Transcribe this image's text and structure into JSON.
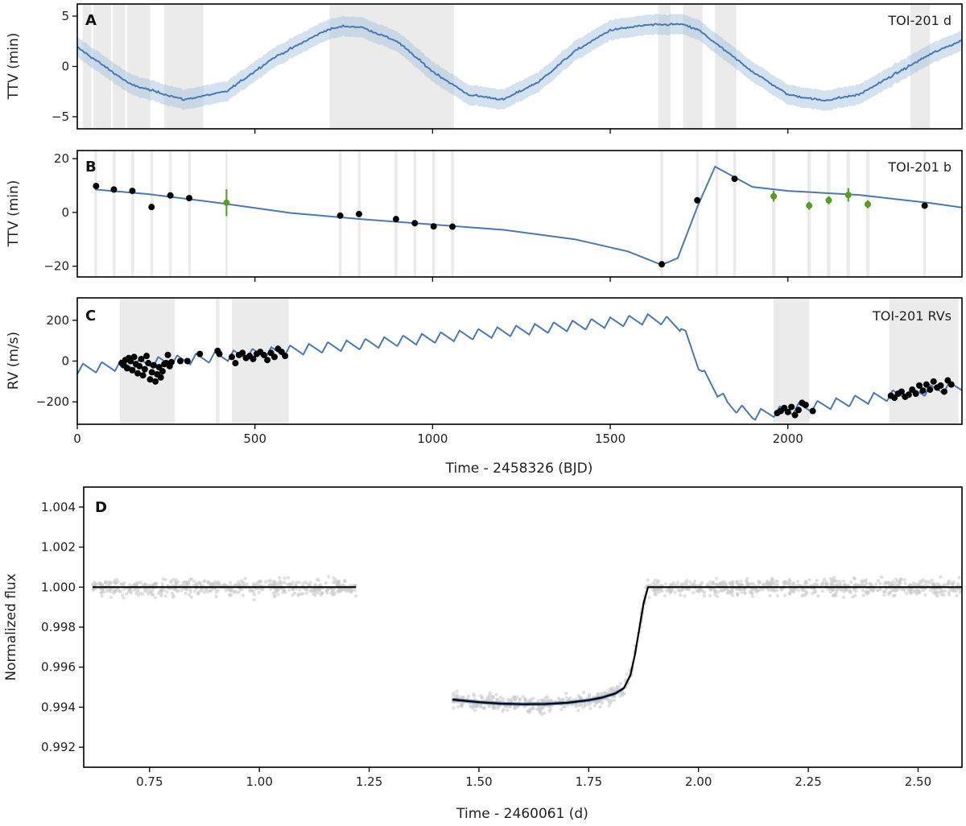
{
  "chart_data": [
    {
      "type": "line",
      "panel": "A",
      "label": "TOI-201 d",
      "ylabel": "TTV (min)",
      "xlim": [
        0,
        2490
      ],
      "ylim": [
        -6.2,
        6.2
      ],
      "yticks": [
        5,
        0,
        -5
      ],
      "xticks": [
        500,
        1000,
        1500,
        2000
      ],
      "model": {
        "x": [
          0,
          150,
          300,
          420,
          550,
          700,
          750,
          800,
          900,
          1000,
          1100,
          1200,
          1300,
          1400,
          1500,
          1600,
          1700,
          1750,
          1800,
          1900,
          2000,
          2100,
          2200,
          2300,
          2400,
          2490
        ],
        "y": [
          1.9,
          -1.8,
          -3.3,
          -2.5,
          0.8,
          3.6,
          4.0,
          3.9,
          2.5,
          -0.5,
          -2.8,
          -3.3,
          -1.5,
          1.5,
          3.6,
          4.1,
          4.2,
          3.6,
          2.2,
          -0.5,
          -2.8,
          -3.4,
          -2.8,
          -0.8,
          1.2,
          2.6
        ]
      },
      "band_halfwidth": 1.0,
      "gray_spans": [
        [
          15,
          40
        ],
        [
          45,
          95
        ],
        [
          100,
          135
        ],
        [
          140,
          205
        ],
        [
          245,
          355
        ],
        [
          710,
          1060
        ],
        [
          1635,
          1670
        ],
        [
          1705,
          1760
        ],
        [
          1795,
          1855
        ],
        [
          2345,
          2400
        ]
      ]
    },
    {
      "type": "scatter",
      "panel": "B",
      "label": "TOI-201 b",
      "ylabel": "TTV (min)",
      "xlim": [
        0,
        2490
      ],
      "ylim": [
        -24,
        23
      ],
      "yticks": [
        20,
        0,
        -20
      ],
      "xticks": [
        500,
        1000,
        1500,
        2000
      ],
      "model": {
        "x": [
          50,
          200,
          400,
          600,
          800,
          1000,
          1200,
          1400,
          1550,
          1645,
          1690,
          1745,
          1795,
          1900,
          2000,
          2200,
          2400,
          2490
        ],
        "y": [
          8.5,
          6.8,
          3.5,
          -0.2,
          -2.5,
          -4.5,
          -6.5,
          -10.0,
          -14.5,
          -19.5,
          -17.0,
          2.0,
          17.0,
          9.5,
          8.0,
          6.5,
          3.5,
          1.8
        ]
      },
      "points_black": [
        [
          53,
          9.8
        ],
        [
          103,
          8.5
        ],
        [
          155,
          8.0
        ],
        [
          209,
          2.0
        ],
        [
          262,
          6.3
        ],
        [
          315,
          5.3
        ],
        [
          740,
          -1.2
        ],
        [
          793,
          -0.6
        ],
        [
          897,
          -2.5
        ],
        [
          950,
          -4.0
        ],
        [
          1003,
          -5.2
        ],
        [
          1056,
          -5.3
        ],
        [
          1645,
          -19.3
        ],
        [
          1745,
          4.5
        ],
        [
          1850,
          12.5
        ],
        [
          2385,
          2.5
        ]
      ],
      "points_green": [
        [
          420,
          3.6,
          5.0
        ],
        [
          1960,
          6.0,
          2.0
        ],
        [
          2060,
          2.5,
          1.5
        ],
        [
          2115,
          4.5,
          1.5
        ],
        [
          2170,
          6.5,
          2.5
        ],
        [
          2225,
          3.0,
          1.5
        ]
      ],
      "gray_spans": [
        [
          48,
          56
        ],
        [
          100,
          108
        ],
        [
          152,
          160
        ],
        [
          206,
          214
        ],
        [
          258,
          266
        ],
        [
          312,
          320
        ],
        [
          417,
          423
        ],
        [
          736,
          744
        ],
        [
          790,
          798
        ],
        [
          893,
          901
        ],
        [
          946,
          954
        ],
        [
          999,
          1007
        ],
        [
          1052,
          1060
        ],
        [
          1641,
          1649
        ],
        [
          1741,
          1749
        ],
        [
          1796,
          1804
        ],
        [
          1846,
          1854
        ],
        [
          1955,
          1965
        ],
        [
          2055,
          2065
        ],
        [
          2110,
          2120
        ],
        [
          2165,
          2175
        ],
        [
          2220,
          2230
        ],
        [
          2381,
          2389
        ]
      ]
    },
    {
      "type": "scatter",
      "panel": "C",
      "label": "TOI-201 RVs",
      "ylabel": "RV (m/s)",
      "xlabel": "Time - 2458326 (BJD)",
      "xlim": [
        0,
        2490
      ],
      "ylim": [
        -310,
        310
      ],
      "yticks": [
        200,
        0,
        -200
      ],
      "xticks": [
        0,
        500,
        1000,
        1500,
        2000
      ],
      "rv_model": {
        "trend_x": [
          0,
          1600,
          1640,
          1700,
          1760,
          1830,
          1900,
          2490
        ],
        "trend_y": [
          -40,
          205,
          205,
          170,
          -60,
          -210,
          -265,
          -120
        ],
        "period": 53,
        "amplitude": 25
      },
      "points": [
        [
          125,
          -10
        ],
        [
          130,
          -20
        ],
        [
          135,
          5
        ],
        [
          140,
          -35
        ],
        [
          145,
          15
        ],
        [
          150,
          0
        ],
        [
          155,
          -45
        ],
        [
          160,
          20
        ],
        [
          165,
          -15
        ],
        [
          170,
          -60
        ],
        [
          175,
          -25
        ],
        [
          180,
          10
        ],
        [
          185,
          -70
        ],
        [
          190,
          -40
        ],
        [
          195,
          25
        ],
        [
          200,
          -10
        ],
        [
          205,
          -90
        ],
        [
          210,
          -55
        ],
        [
          215,
          -20
        ],
        [
          220,
          -100
        ],
        [
          225,
          -65
        ],
        [
          230,
          -30
        ],
        [
          235,
          -80
        ],
        [
          240,
          -50
        ],
        [
          245,
          -15
        ],
        [
          250,
          -10
        ],
        [
          255,
          30
        ],
        [
          260,
          -25
        ],
        [
          265,
          -5
        ],
        [
          290,
          0
        ],
        [
          310,
          0
        ],
        [
          345,
          35
        ],
        [
          395,
          50
        ],
        [
          400,
          35
        ],
        [
          435,
          20
        ],
        [
          445,
          -10
        ],
        [
          455,
          30
        ],
        [
          465,
          40
        ],
        [
          475,
          15
        ],
        [
          485,
          25
        ],
        [
          495,
          10
        ],
        [
          505,
          35
        ],
        [
          515,
          45
        ],
        [
          525,
          30
        ],
        [
          535,
          5
        ],
        [
          545,
          40
        ],
        [
          555,
          20
        ],
        [
          565,
          60
        ],
        [
          575,
          45
        ],
        [
          585,
          25
        ],
        [
          1970,
          -255
        ],
        [
          1980,
          -245
        ],
        [
          1990,
          -230
        ],
        [
          2000,
          -250
        ],
        [
          2010,
          -225
        ],
        [
          2020,
          -265
        ],
        [
          2030,
          -240
        ],
        [
          2040,
          -205
        ],
        [
          2050,
          -215
        ],
        [
          2070,
          -245
        ],
        [
          2290,
          -170
        ],
        [
          2300,
          -180
        ],
        [
          2310,
          -160
        ],
        [
          2320,
          -150
        ],
        [
          2330,
          -175
        ],
        [
          2340,
          -165
        ],
        [
          2350,
          -140
        ],
        [
          2360,
          -160
        ],
        [
          2370,
          -120
        ],
        [
          2380,
          -145
        ],
        [
          2390,
          -115
        ],
        [
          2400,
          -140
        ],
        [
          2410,
          -100
        ],
        [
          2420,
          -130
        ],
        [
          2430,
          -120
        ],
        [
          2440,
          -150
        ],
        [
          2450,
          -95
        ],
        [
          2460,
          -115
        ]
      ],
      "gray_spans": [
        [
          120,
          275
        ],
        [
          390,
          400
        ],
        [
          435,
          595
        ],
        [
          1960,
          2060
        ],
        [
          2285,
          2480
        ]
      ]
    },
    {
      "type": "scatter",
      "panel": "D",
      "ylabel": "Normalized flux",
      "xlabel": "Time - 2460061 (d)",
      "xlim": [
        0.6,
        2.6
      ],
      "ylim": [
        0.991,
        1.005
      ],
      "yticks": [
        1.004,
        1.002,
        1.0,
        0.998,
        0.996,
        0.994,
        0.992
      ],
      "ytick_labels": [
        "1.004",
        "1.002",
        "1.000",
        "0.998",
        "0.996",
        "0.994",
        "0.992"
      ],
      "xticks": [
        0.75,
        1.0,
        1.25,
        1.5,
        1.75,
        2.0,
        2.25,
        2.5
      ],
      "xtick_labels": [
        "0.75",
        "1.00",
        "1.25",
        "1.50",
        "1.75",
        "2.00",
        "2.25",
        "2.50"
      ],
      "data_segments": [
        [
          0.62,
          1.22
        ],
        [
          1.44,
          1.88
        ],
        [
          1.88,
          2.6
        ]
      ],
      "model_segments": [
        {
          "x": [
            0.62,
            1.22
          ],
          "y": [
            1.0,
            1.0
          ]
        },
        {
          "x": [
            1.44,
            1.5,
            1.55,
            1.6,
            1.65,
            1.7,
            1.75,
            1.78,
            1.81,
            1.83,
            1.845,
            1.855,
            1.865,
            1.875,
            1.885,
            2.6
          ],
          "y": [
            0.99438,
            0.99425,
            0.99418,
            0.99415,
            0.99416,
            0.99422,
            0.99435,
            0.99448,
            0.99468,
            0.99495,
            0.9956,
            0.9966,
            0.9979,
            0.9992,
            1.0,
            1.0
          ]
        }
      ]
    }
  ]
}
